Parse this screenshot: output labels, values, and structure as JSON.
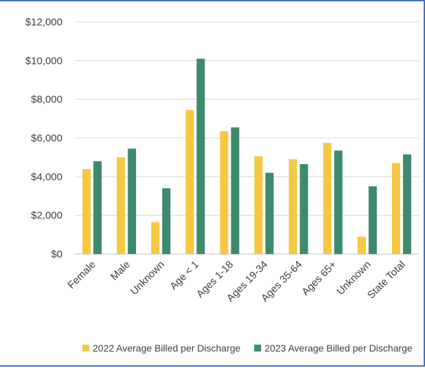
{
  "chart_data": {
    "type": "bar",
    "categories": [
      "Female",
      "Male",
      "Unknown",
      "Age < 1",
      "Ages 1-18",
      "Ages 19-34",
      "Ages 35-64",
      "Ages 65+",
      "Unknown",
      "State Total"
    ],
    "series": [
      {
        "name": "2022 Average Billed per Discharge",
        "color": "#f4c842",
        "values": [
          4400,
          5000,
          1650,
          7450,
          6350,
          5050,
          4900,
          5750,
          900,
          4700
        ]
      },
      {
        "name": "2023 Average Billed per Discharge",
        "color": "#3d8a6c",
        "values": [
          4800,
          5450,
          3400,
          10100,
          6550,
          4200,
          4650,
          5350,
          3500,
          5150
        ]
      }
    ],
    "y_ticks": [
      "$0",
      "$2,000",
      "$4,000",
      "$6,000",
      "$8,000",
      "$10,000",
      "$12,000"
    ],
    "ylim": [
      0,
      12000
    ],
    "grid": true,
    "legend_position": "bottom",
    "x_label_rotation": "45deg"
  }
}
